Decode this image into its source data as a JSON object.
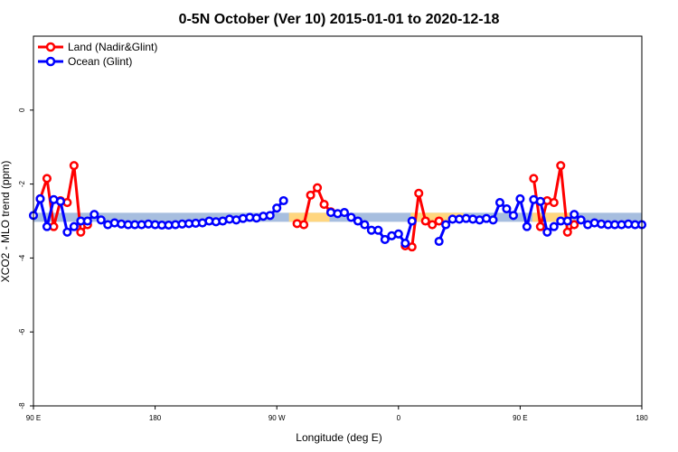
{
  "chart_data": {
    "type": "line",
    "title": "0-5N October (Ver 10)   2015-01-01 to 2020-12-18",
    "xlabel": "Longitude (deg E)",
    "ylabel": "XCO2 - MLO trend (ppm)",
    "x_ticks": [
      {
        "value": 0,
        "label": "90 E"
      },
      {
        "value": 90,
        "label": "180"
      },
      {
        "value": 180,
        "label": "90 W"
      },
      {
        "value": 270,
        "label": "0"
      },
      {
        "value": 360,
        "label": "90 E"
      },
      {
        "value": 450,
        "label": "180"
      }
    ],
    "y_ticks": [
      {
        "value": 0,
        "label": "0"
      },
      {
        "value": -2,
        "label": "-2"
      },
      {
        "value": -4,
        "label": "-4"
      },
      {
        "value": -6,
        "label": "-6"
      },
      {
        "value": -8,
        "label": "-8"
      }
    ],
    "xlim": [
      0,
      450
    ],
    "ylim": [
      -8,
      2
    ],
    "grid": false,
    "legend_position": "top-left",
    "land_bands": [
      [
        189,
        219
      ],
      [
        279,
        318
      ],
      [
        369,
        399
      ]
    ],
    "band_y": -2.9,
    "band_colors": {
      "ocean": "#a7bedf",
      "land": "#ffd67f"
    },
    "series": [
      {
        "name": "Land (Nadir&Glint)",
        "color": "#ff0000",
        "points": [
          [
            5,
            -2.4
          ],
          [
            10,
            -1.85
          ],
          [
            15,
            -3.15
          ],
          [
            20,
            -2.45
          ],
          [
            25,
            -2.5
          ],
          [
            30,
            -1.5
          ],
          [
            35,
            -3.3
          ],
          [
            40,
            -3.1
          ],
          [
            195,
            -3.07
          ],
          [
            200,
            -3.1
          ],
          [
            205,
            -2.3
          ],
          [
            210,
            -2.1
          ],
          [
            215,
            -2.55
          ],
          [
            220,
            -2.75
          ],
          [
            275,
            -3.67
          ],
          [
            280,
            -3.7
          ],
          [
            285,
            -2.25
          ],
          [
            290,
            -3.0
          ],
          [
            295,
            -3.1
          ],
          [
            300,
            -3.0
          ],
          [
            370,
            -1.85
          ],
          [
            375,
            -3.15
          ],
          [
            380,
            -2.45
          ],
          [
            385,
            -2.5
          ],
          [
            390,
            -1.5
          ],
          [
            395,
            -3.3
          ],
          [
            400,
            -3.1
          ]
        ]
      },
      {
        "name": "Ocean (Glint)",
        "color": "#0000ff",
        "points": [
          [
            0,
            -2.85
          ],
          [
            5,
            -2.4
          ],
          [
            10,
            -3.15
          ],
          [
            15,
            -2.42
          ],
          [
            20,
            -2.47
          ],
          [
            25,
            -3.3
          ],
          [
            30,
            -3.15
          ],
          [
            35,
            -3.0
          ],
          [
            40,
            -3.0
          ],
          [
            45,
            -2.82
          ],
          [
            50,
            -2.97
          ],
          [
            55,
            -3.1
          ],
          [
            60,
            -3.05
          ],
          [
            65,
            -3.08
          ],
          [
            70,
            -3.1
          ],
          [
            75,
            -3.1
          ],
          [
            80,
            -3.1
          ],
          [
            85,
            -3.08
          ],
          [
            90,
            -3.1
          ],
          [
            95,
            -3.11
          ],
          [
            100,
            -3.11
          ],
          [
            105,
            -3.1
          ],
          [
            110,
            -3.08
          ],
          [
            115,
            -3.07
          ],
          [
            120,
            -3.06
          ],
          [
            125,
            -3.05
          ],
          [
            130,
            -3.0
          ],
          [
            135,
            -3.02
          ],
          [
            140,
            -3.0
          ],
          [
            145,
            -2.95
          ],
          [
            150,
            -2.97
          ],
          [
            155,
            -2.93
          ],
          [
            160,
            -2.9
          ],
          [
            165,
            -2.92
          ],
          [
            170,
            -2.87
          ],
          [
            175,
            -2.85
          ],
          [
            180,
            -2.65
          ],
          [
            185,
            -2.45
          ],
          [
            220,
            -2.77
          ],
          [
            225,
            -2.8
          ],
          [
            230,
            -2.77
          ],
          [
            235,
            -2.9
          ],
          [
            240,
            -3.0
          ],
          [
            245,
            -3.1
          ],
          [
            250,
            -3.25
          ],
          [
            255,
            -3.25
          ],
          [
            260,
            -3.5
          ],
          [
            265,
            -3.4
          ],
          [
            270,
            -3.35
          ],
          [
            275,
            -3.6
          ],
          [
            280,
            -3.0
          ],
          [
            300,
            -3.55
          ],
          [
            305,
            -3.1
          ],
          [
            310,
            -2.95
          ],
          [
            315,
            -2.95
          ],
          [
            320,
            -2.93
          ],
          [
            325,
            -2.95
          ],
          [
            330,
            -2.97
          ],
          [
            335,
            -2.93
          ],
          [
            340,
            -2.97
          ],
          [
            345,
            -2.5
          ],
          [
            350,
            -2.67
          ],
          [
            355,
            -2.85
          ],
          [
            360,
            -2.4
          ],
          [
            365,
            -3.15
          ],
          [
            370,
            -2.42
          ],
          [
            375,
            -2.47
          ],
          [
            380,
            -3.3
          ],
          [
            385,
            -3.15
          ],
          [
            390,
            -3.0
          ],
          [
            395,
            -3.0
          ],
          [
            400,
            -2.82
          ],
          [
            405,
            -2.97
          ],
          [
            410,
            -3.1
          ],
          [
            415,
            -3.05
          ],
          [
            420,
            -3.08
          ],
          [
            425,
            -3.1
          ],
          [
            430,
            -3.1
          ],
          [
            435,
            -3.1
          ],
          [
            440,
            -3.08
          ],
          [
            445,
            -3.1
          ],
          [
            450,
            -3.1
          ]
        ]
      }
    ]
  }
}
